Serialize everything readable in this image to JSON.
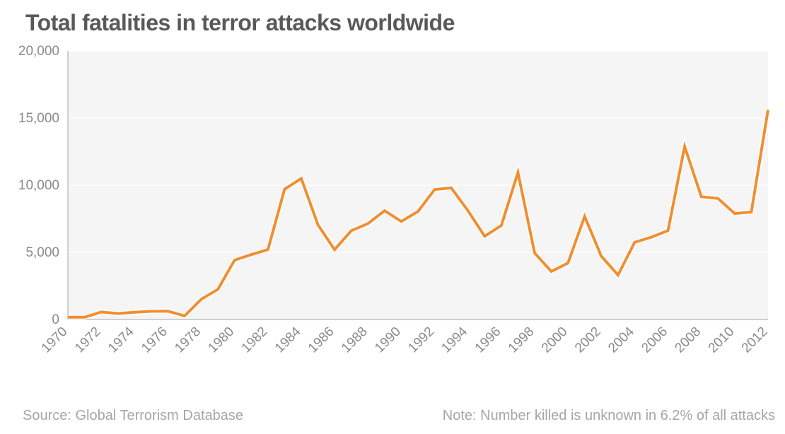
{
  "chart": {
    "type": "line",
    "title": "Total fatalities in terror attacks worldwide",
    "title_fontsize": 32,
    "title_color": "#595959",
    "plot_background": "#f5f5f5",
    "page_background": "#ffffff",
    "gridline_color": "#ffffff",
    "axis_color": "#b8b8b8",
    "tick_label_color": "#8a8a8a",
    "tick_fontsize": 19,
    "line_color": "#ef8f32",
    "line_width": 4,
    "line_outline_color": "#ffffff",
    "line_outline_width": 7,
    "ylim": [
      0,
      20001
    ],
    "ytick_step": 5000,
    "ytick_labels": [
      "0",
      "5,000",
      "10,000",
      "15,000",
      "20,000"
    ],
    "x_years": [
      1970,
      1971,
      1972,
      1973,
      1974,
      1975,
      1976,
      1977,
      1978,
      1979,
      1980,
      1981,
      1982,
      1983,
      1984,
      1985,
      1986,
      1987,
      1988,
      1989,
      1990,
      1991,
      1992,
      1993,
      1994,
      1995,
      1996,
      1997,
      1998,
      1999,
      2000,
      2001,
      2002,
      2003,
      2004,
      2005,
      2006,
      2007,
      2008,
      2009,
      2010,
      2011,
      2012
    ],
    "xtick_years": [
      1970,
      1972,
      1974,
      1976,
      1978,
      1980,
      1982,
      1984,
      1986,
      1988,
      1990,
      1992,
      1994,
      1996,
      1998,
      2000,
      2002,
      2004,
      2006,
      2008,
      2010,
      2012
    ],
    "xtick_label_rotation": -45,
    "values": [
      170,
      170,
      560,
      450,
      540,
      610,
      620,
      270,
      1510,
      2250,
      4420,
      4830,
      5210,
      9700,
      10500,
      7050,
      5200,
      6610,
      7140,
      8100,
      7300,
      8040,
      9680,
      9800,
      8100,
      6200,
      7000,
      10950,
      4950,
      3580,
      4200,
      7680,
      4710,
      3310,
      5750,
      6130,
      6620,
      12880,
      9140,
      9010,
      7890,
      8000,
      15610
    ],
    "footer_left": "Source: Global Terrorism Database",
    "footer_right": "Note: Number killed is unknown in 6.2% of all attacks",
    "footer_fontsize": 20,
    "footer_color": "#a6a6a6"
  }
}
